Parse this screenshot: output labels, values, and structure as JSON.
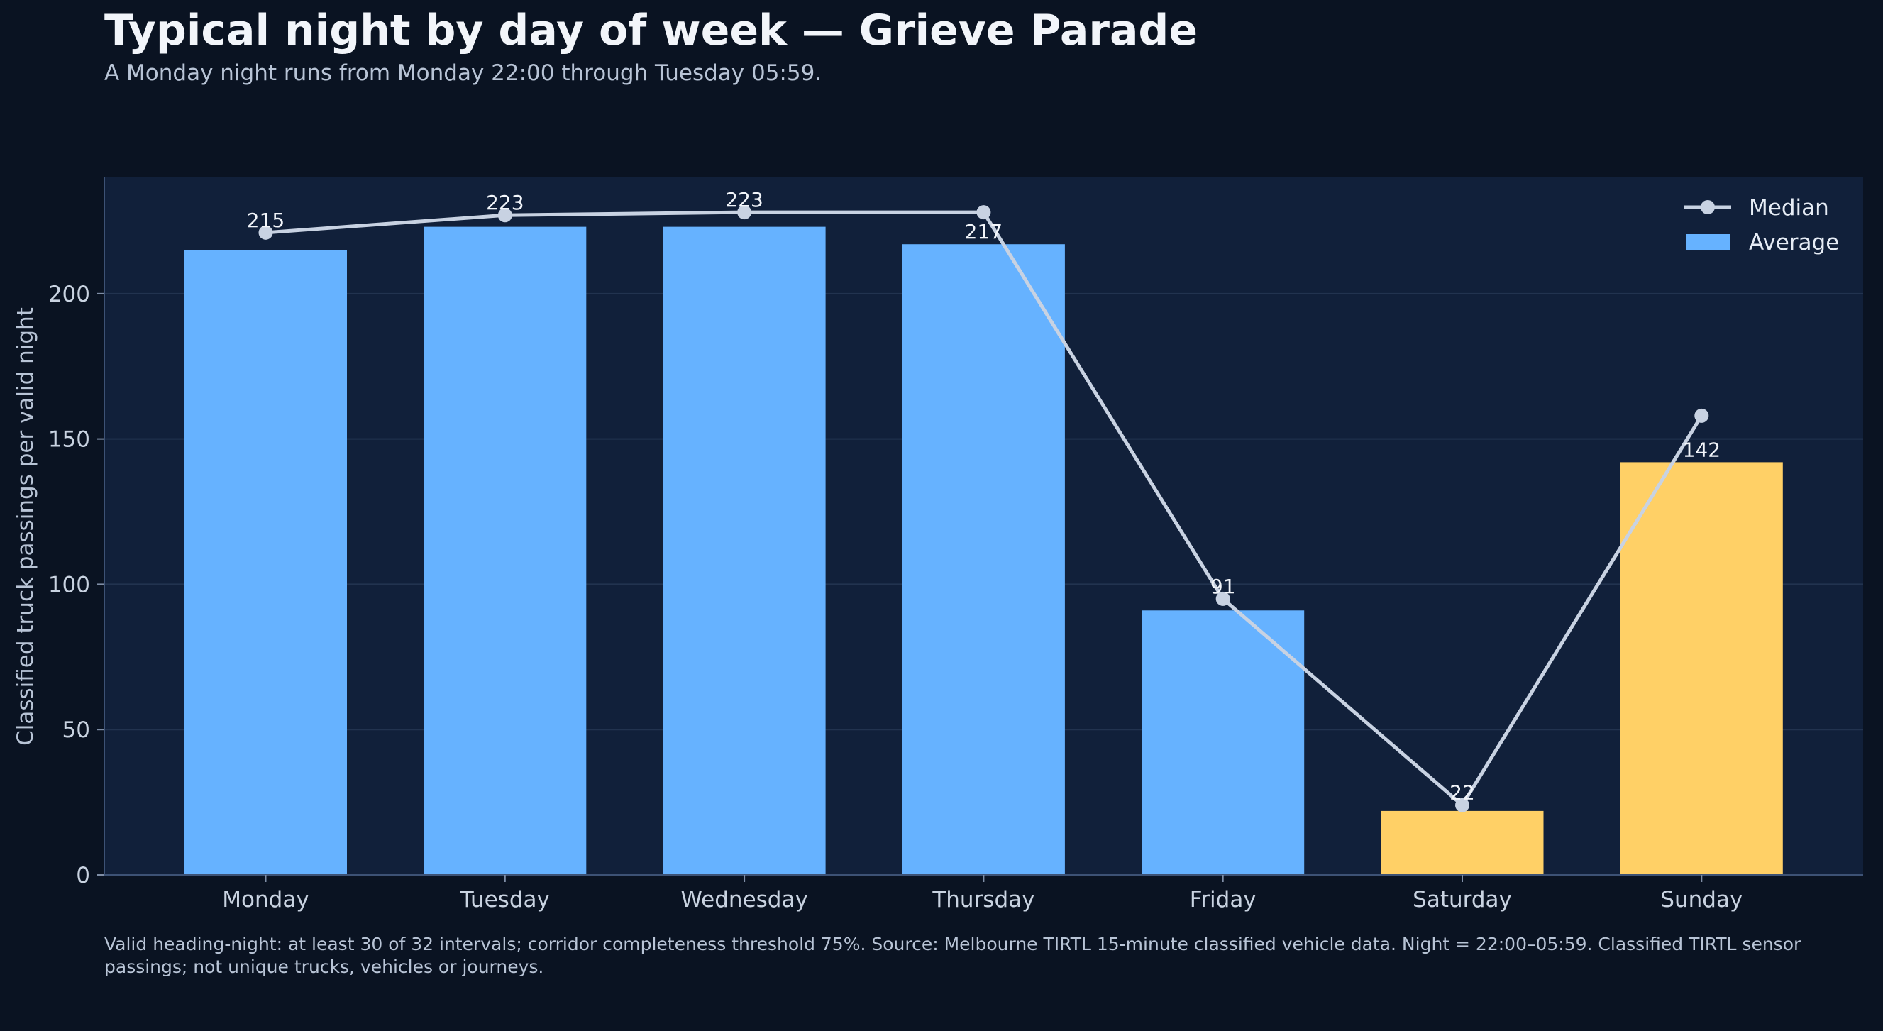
{
  "title": "Typical night by day of week — Grieve Parade",
  "subtitle": "A Monday night runs from Monday 22:00 through Tuesday 05:59.",
  "footnote": "Valid heading-night: at least 30 of 32 intervals; corridor completeness threshold 75%. Source: Melbourne TIRTL 15-minute classified vehicle data. Night = 22:00–05:59. Classified TIRTL sensor passings; not unique trucks, vehicles or journeys.",
  "colors": {
    "background": "#0a1322",
    "plot_background": "#11203a",
    "weekday_bar": "#66b2ff",
    "weekend_bar": "#ffd066",
    "median_line": "#c8d2e2",
    "grid": "#22334f",
    "text": "#c9d3e1"
  },
  "chart_data": {
    "type": "bar",
    "title": "Typical night by day of week — Grieve Parade",
    "xlabel": "",
    "ylabel": "Classified truck passings per valid night",
    "categories": [
      "Monday",
      "Tuesday",
      "Wednesday",
      "Thursday",
      "Friday",
      "Saturday",
      "Sunday"
    ],
    "ylim": [
      0,
      240
    ],
    "yticks": [
      0,
      50,
      100,
      150,
      200
    ],
    "grid": true,
    "legend_position": "top-right",
    "series": [
      {
        "name": "Average",
        "type": "bar",
        "values": [
          215,
          223,
          223,
          217,
          91,
          22,
          142
        ],
        "bar_colors": [
          "#66b2ff",
          "#66b2ff",
          "#66b2ff",
          "#66b2ff",
          "#66b2ff",
          "#ffd066",
          "#ffd066"
        ],
        "data_labels": [
          "215",
          "223",
          "223",
          "217",
          "91",
          "22",
          "142"
        ]
      },
      {
        "name": "Median",
        "type": "line",
        "values": [
          221,
          227,
          228,
          228,
          95,
          24,
          158
        ]
      }
    ]
  }
}
